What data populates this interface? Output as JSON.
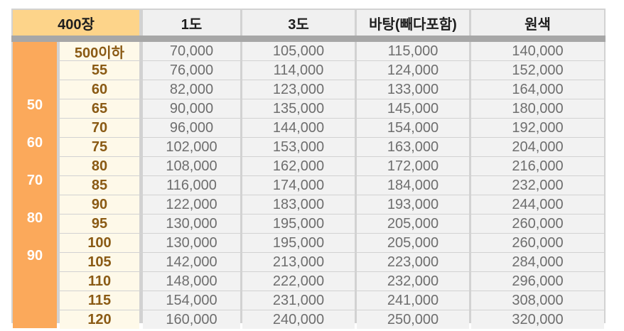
{
  "header": {
    "corner": "400장",
    "columns": [
      "1도",
      "3도",
      "바탕(빼다포함)",
      "원색"
    ]
  },
  "side_labels": [
    "50",
    "60",
    "70",
    "80",
    "90"
  ],
  "rows": [
    {
      "size": "500이하",
      "prices": [
        "70,000",
        "105,000",
        "115,000",
        "140,000"
      ]
    },
    {
      "size": "55",
      "prices": [
        "76,000",
        "114,000",
        "124,000",
        "152,000"
      ]
    },
    {
      "size": "60",
      "prices": [
        "82,000",
        "123,000",
        "133,000",
        "164,000"
      ]
    },
    {
      "size": "65",
      "prices": [
        "90,000",
        "135,000",
        "145,000",
        "180,000"
      ]
    },
    {
      "size": "70",
      "prices": [
        "96,000",
        "144,000",
        "154,000",
        "192,000"
      ]
    },
    {
      "size": "75",
      "prices": [
        "102,000",
        "153,000",
        "163,000",
        "204,000"
      ]
    },
    {
      "size": "80",
      "prices": [
        "108,000",
        "162,000",
        "172,000",
        "216,000"
      ]
    },
    {
      "size": "85",
      "prices": [
        "116,000",
        "174,000",
        "184,000",
        "232,000"
      ]
    },
    {
      "size": "90",
      "prices": [
        "122,000",
        "183,000",
        "193,000",
        "244,000"
      ]
    },
    {
      "size": "95",
      "prices": [
        "130,000",
        "195,000",
        "205,000",
        "260,000"
      ]
    },
    {
      "size": "100",
      "prices": [
        "130,000",
        "195,000",
        "205,000",
        "260,000"
      ]
    },
    {
      "size": "105",
      "prices": [
        "142,000",
        "213,000",
        "223,000",
        "284,000"
      ]
    },
    {
      "size": "110",
      "prices": [
        "148,000",
        "222,000",
        "232,000",
        "296,000"
      ]
    },
    {
      "size": "115",
      "prices": [
        "154,000",
        "231,000",
        "241,000",
        "308,000"
      ]
    },
    {
      "size": "120",
      "prices": [
        "160,000",
        "240,000",
        "250,000",
        "320,000"
      ]
    }
  ],
  "colors": {
    "corner_bg": "#fdd48a",
    "side_bg": "#fba95b",
    "size_text": "#8a5a14",
    "price_text": "#6e6e6e",
    "border": "#d2d2d2"
  }
}
